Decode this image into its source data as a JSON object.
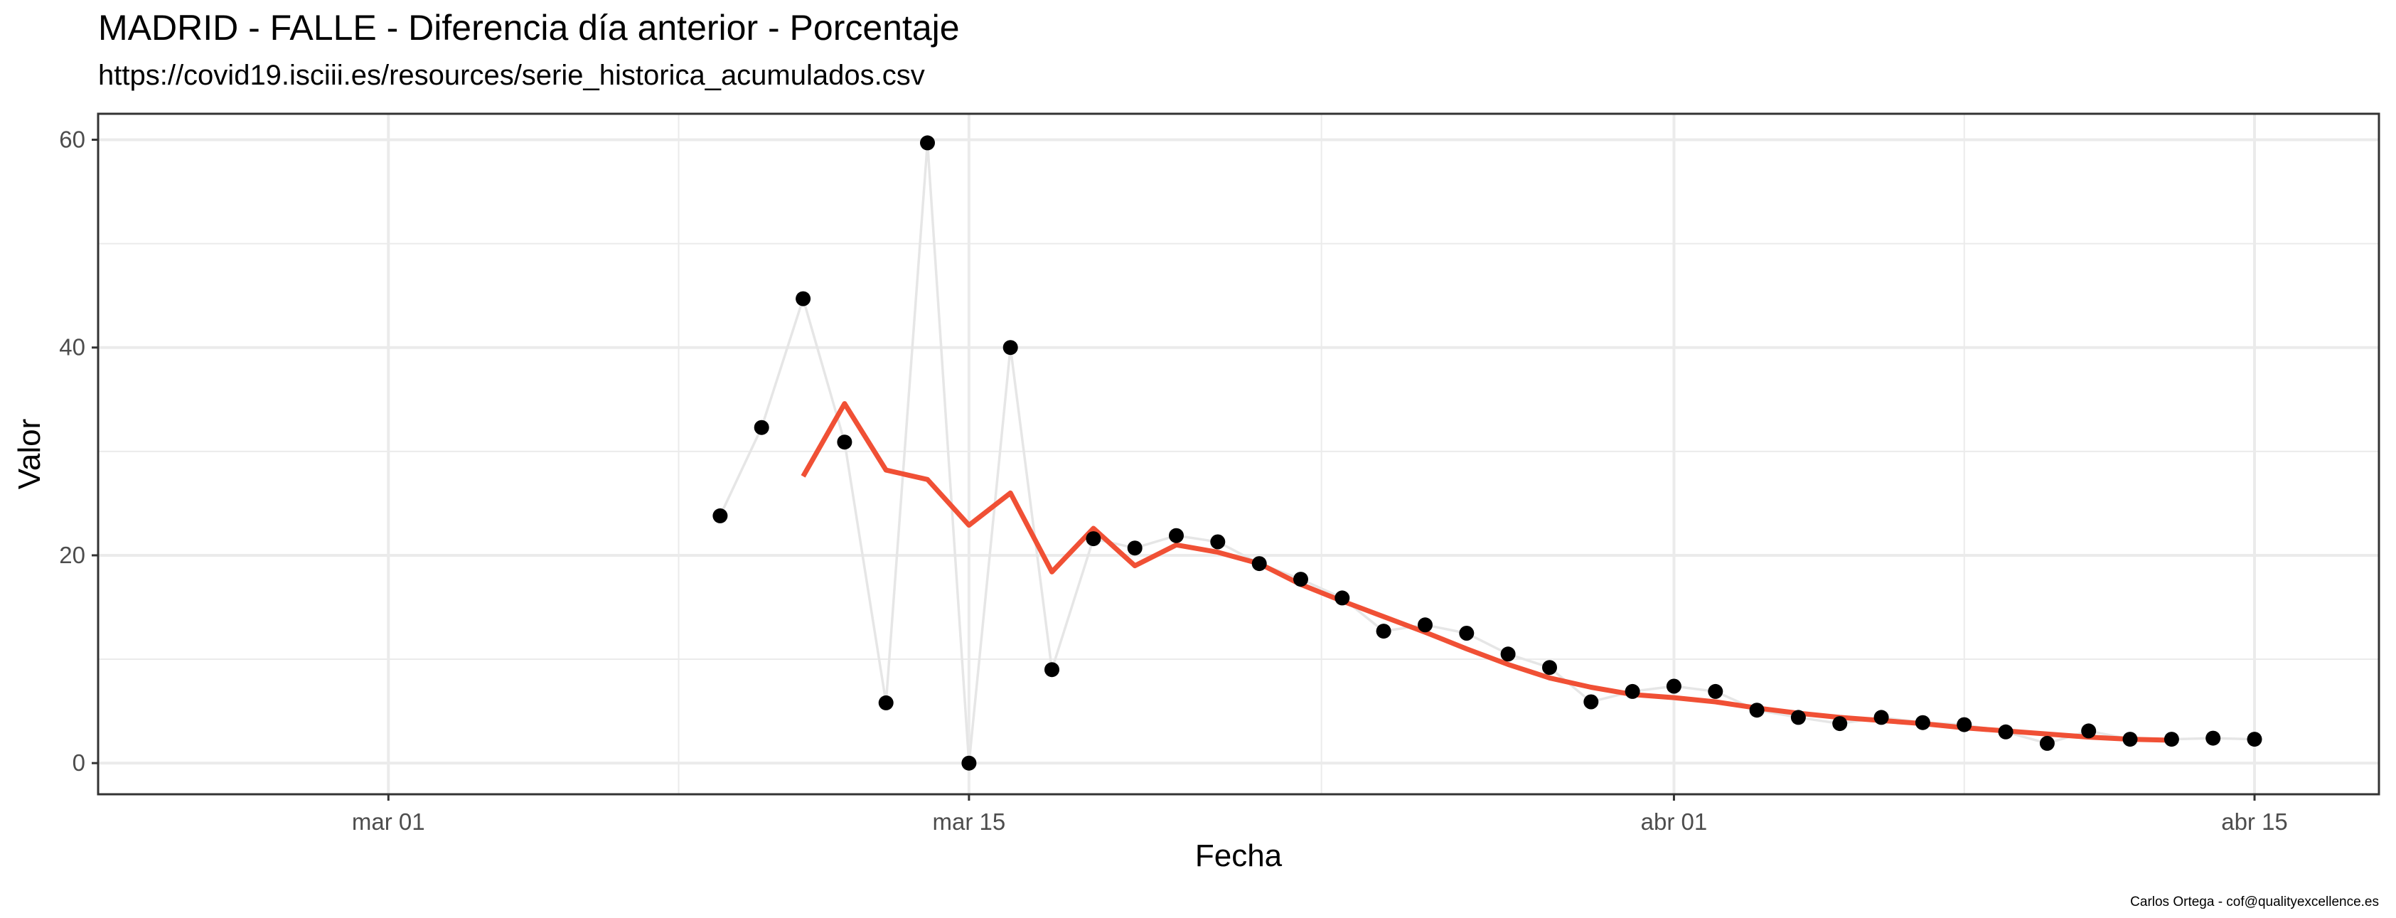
{
  "chart_data": {
    "type": "line",
    "title": "MADRID - FALLE - Diferencia día anterior - Porcentaje",
    "subtitle": "https://covid19.isciii.es/resources/serie_historica_acumulados.csv",
    "caption": "Carlos Ortega - cof@qualityexcellence.es",
    "xlabel": "Fecha",
    "ylabel": "Valor",
    "xlim": [
      "2020-02-23",
      "2020-04-18"
    ],
    "ylim": [
      -3,
      62.5
    ],
    "x_ticks": [
      {
        "date": "2020-03-01",
        "label": "mar 01"
      },
      {
        "date": "2020-03-15",
        "label": "mar 15"
      },
      {
        "date": "2020-04-01",
        "label": "abr 01"
      },
      {
        "date": "2020-04-15",
        "label": "abr 15"
      }
    ],
    "y_ticks": [
      0,
      20,
      40,
      60
    ],
    "grid": true,
    "colors": {
      "points": "#000000",
      "connector": "#e6e6e6",
      "smooth": "#f05035",
      "grid": "#ebebeb"
    },
    "series": [
      {
        "kind": "points",
        "x": [
          "2020-03-09",
          "2020-03-10",
          "2020-03-11",
          "2020-03-12",
          "2020-03-13",
          "2020-03-14",
          "2020-03-15",
          "2020-03-16",
          "2020-03-17",
          "2020-03-18",
          "2020-03-19",
          "2020-03-20",
          "2020-03-21",
          "2020-03-22",
          "2020-03-23",
          "2020-03-24",
          "2020-03-25",
          "2020-03-26",
          "2020-03-27",
          "2020-03-28",
          "2020-03-29",
          "2020-03-30",
          "2020-03-31",
          "2020-04-01",
          "2020-04-02",
          "2020-04-03",
          "2020-04-04",
          "2020-04-05",
          "2020-04-06",
          "2020-04-07",
          "2020-04-08",
          "2020-04-09",
          "2020-04-10",
          "2020-04-11",
          "2020-04-12",
          "2020-04-13",
          "2020-04-14",
          "2020-04-15"
        ],
        "values": [
          23.8,
          32.3,
          44.7,
          30.9,
          5.8,
          59.7,
          0.0,
          40.0,
          9.0,
          21.6,
          20.7,
          21.9,
          21.3,
          19.2,
          17.7,
          15.9,
          12.7,
          13.3,
          12.5,
          10.5,
          9.2,
          5.9,
          6.9,
          7.4,
          6.9,
          5.1,
          4.4,
          3.8,
          4.4,
          3.9,
          3.7,
          3.0,
          1.9,
          3.1,
          2.3,
          2.3,
          2.4,
          2.3
        ]
      },
      {
        "kind": "smooth",
        "x": [
          "2020-03-11",
          "2020-03-12",
          "2020-03-13",
          "2020-03-14",
          "2020-03-15",
          "2020-03-16",
          "2020-03-17",
          "2020-03-18",
          "2020-03-19",
          "2020-03-20",
          "2020-03-21",
          "2020-03-22",
          "2020-03-23",
          "2020-03-24",
          "2020-03-25",
          "2020-03-26",
          "2020-03-27",
          "2020-03-28",
          "2020-03-29",
          "2020-03-30",
          "2020-03-31",
          "2020-04-01",
          "2020-04-02",
          "2020-04-03",
          "2020-04-04",
          "2020-04-05",
          "2020-04-06",
          "2020-04-07",
          "2020-04-08",
          "2020-04-09",
          "2020-04-10",
          "2020-04-11",
          "2020-04-12",
          "2020-04-13"
        ],
        "values": [
          27.6,
          34.6,
          28.2,
          27.3,
          22.9,
          26.0,
          18.4,
          22.6,
          19.0,
          21.0,
          20.3,
          19.2,
          17.2,
          15.6,
          14.1,
          12.6,
          11.0,
          9.5,
          8.2,
          7.3,
          6.6,
          6.3,
          5.9,
          5.3,
          4.8,
          4.4,
          4.1,
          3.8,
          3.4,
          3.1,
          2.8,
          2.5,
          2.3,
          2.2
        ]
      }
    ]
  }
}
